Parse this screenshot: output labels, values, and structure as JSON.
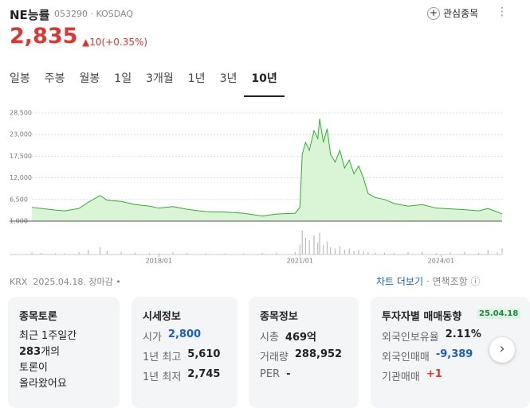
{
  "header": {
    "name": "NE능률",
    "code": "053290",
    "market": "KOSDAQ",
    "favorite": "관심종목",
    "price": "2,835",
    "change": "10(+0.35%)"
  },
  "tabs": [
    "일봉",
    "주봉",
    "월봉",
    "1일",
    "3개월",
    "1년",
    "3년",
    "10년"
  ],
  "chart_data": {
    "type": "area",
    "color": "#2fb02f",
    "fill": "#d9f5d6",
    "grid": true,
    "x": [
      2015.3,
      2015.5,
      2015.8,
      2016.0,
      2016.3,
      2016.5,
      2016.75,
      2016.9,
      2017.2,
      2017.5,
      2017.8,
      2018.0,
      2018.3,
      2018.6,
      2019.0,
      2019.4,
      2019.8,
      2020.2,
      2020.5,
      2020.9,
      2021.0,
      2021.05,
      2021.12,
      2021.2,
      2021.3,
      2021.38,
      2021.42,
      2021.5,
      2021.58,
      2021.65,
      2021.75,
      2021.85,
      2021.95,
      2022.05,
      2022.15,
      2022.25,
      2022.35,
      2022.45,
      2022.6,
      2022.8,
      2023.0,
      2023.3,
      2023.6,
      2023.9,
      2024.2,
      2024.5,
      2024.8,
      2025.0,
      2025.2,
      2025.3
    ],
    "values": [
      4500,
      4200,
      3800,
      3600,
      4200,
      5800,
      7500,
      6300,
      6000,
      5200,
      4800,
      4300,
      4700,
      4000,
      3400,
      3300,
      3000,
      2300,
      2800,
      3000,
      4500,
      18000,
      21000,
      19000,
      24000,
      22000,
      27000,
      21000,
      24500,
      18000,
      16000,
      19000,
      14500,
      16500,
      13000,
      15000,
      12000,
      8000,
      7000,
      6500,
      5500,
      4800,
      5200,
      4300,
      4100,
      3900,
      3600,
      4200,
      3300,
      2835
    ],
    "volume": [
      8,
      6,
      5,
      5,
      10,
      20,
      30,
      15,
      10,
      8,
      6,
      5,
      10,
      6,
      5,
      4,
      4,
      6,
      8,
      10,
      40,
      100,
      70,
      60,
      80,
      50,
      90,
      40,
      55,
      30,
      25,
      35,
      20,
      25,
      15,
      20,
      15,
      10,
      8,
      8,
      6,
      10,
      12,
      6,
      8,
      10,
      6,
      20,
      10,
      25
    ],
    "xlim": [
      2015.3,
      2025.3
    ],
    "xticks": [
      {
        "value": 2018,
        "label": "2018/01"
      },
      {
        "value": 2021,
        "label": "2021/01"
      },
      {
        "value": 2024,
        "label": "2024/01"
      }
    ],
    "ylim": [
      1000,
      28500
    ],
    "yticks": [
      {
        "value": 28500,
        "label": "28,500"
      },
      {
        "value": 23000,
        "label": "23,000"
      },
      {
        "value": 17500,
        "label": "17,500"
      },
      {
        "value": 12000,
        "label": "12,000"
      },
      {
        "value": 6500,
        "label": "6,500"
      },
      {
        "value": 1000,
        "label": "1,000"
      }
    ],
    "y2lim": [
      0,
      100
    ]
  },
  "status": {
    "exchange": "KRX",
    "date": "2025.04.18.",
    "state": "장마감",
    "more": "차트 더보기",
    "disclaimer": "면책조항"
  },
  "cards": {
    "discussion": {
      "title": "종목토론",
      "line1": "최근 1주일간",
      "count": "283",
      "line2": "개의",
      "line3": "토론이",
      "line4": "올라왔어요"
    },
    "quote": {
      "title": "시세정보",
      "rows": [
        [
          "시가",
          "2,800"
        ],
        [
          "1년 최고",
          "5,610"
        ],
        [
          "1년 최저",
          "2,745"
        ]
      ]
    },
    "info": {
      "title": "종목정보",
      "rows": [
        [
          "시총",
          "469억"
        ],
        [
          "거래량",
          "288,952"
        ],
        [
          "PER",
          "-"
        ]
      ]
    },
    "investor": {
      "title": "투자자별 매매동향",
      "date": "25.04.18",
      "rows": [
        [
          "외국인보유율",
          "2.11%"
        ],
        [
          "외국인매매",
          "-9,389"
        ],
        [
          "기관매매",
          "+1"
        ]
      ]
    }
  }
}
